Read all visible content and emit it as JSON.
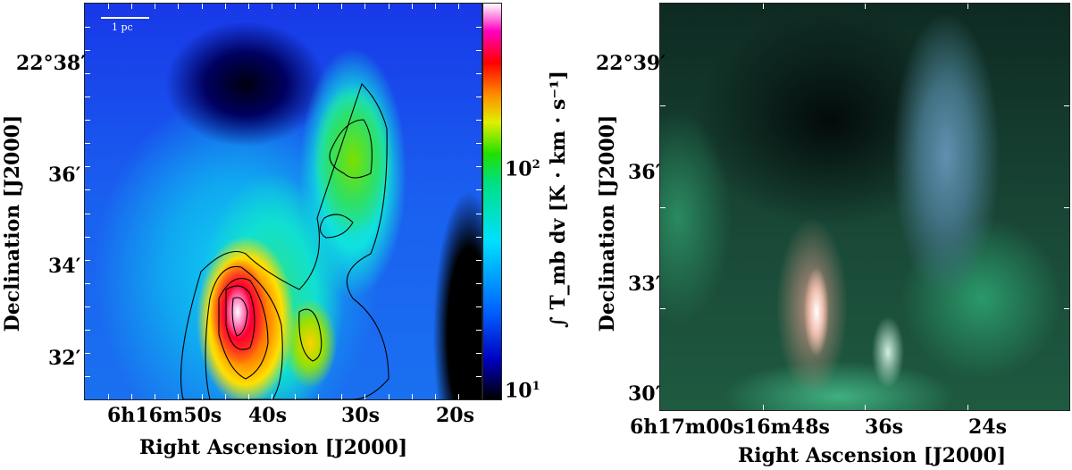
{
  "chart_data": [
    {
      "type": "heatmap",
      "title": "",
      "xlabel": "Right Ascension [J2000]",
      "ylabel": "Declination [J2000]",
      "xticks": [
        "6h16m50s",
        "40s",
        "30s",
        "20s"
      ],
      "yticks": [
        "22°38′",
        "36′",
        "34′",
        "32′"
      ],
      "scale_bar": "1 pc",
      "contours": true,
      "colormap": "cubehelix-like rainbow",
      "colorbar": {
        "label": "∫ T_mb dv [K · km · s⁻¹]",
        "scale": "log",
        "range": [
          8,
          400
        ],
        "ticks": [
          "10^1",
          "10^2"
        ]
      }
    },
    {
      "type": "heatmap",
      "title": "",
      "xlabel": "Right Ascension [J2000]",
      "ylabel": "Declination [J2000]",
      "xticks": [
        "6h17m00s",
        "16m48s",
        "36s",
        "24s"
      ],
      "yticks": [
        "22°39′",
        "36′",
        "33′",
        "30′"
      ],
      "colormap": "RGB composite"
    }
  ]
}
